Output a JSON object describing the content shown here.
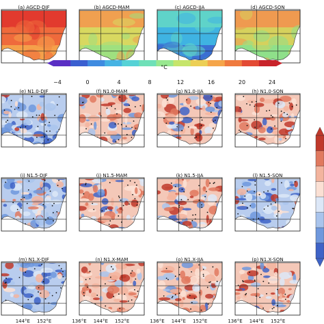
{
  "panels": [
    {
      "label": "(a) AGCD-DJF",
      "kind": "agcd",
      "season": "DJF"
    },
    {
      "label": "(b) AGCD-MAM",
      "kind": "agcd",
      "season": "MAM"
    },
    {
      "label": "(c) AGCD-JJA",
      "kind": "agcd",
      "season": "JJA"
    },
    {
      "label": "(d) AGCD-SON",
      "kind": "agcd",
      "season": "SON"
    },
    {
      "label": "(e) N1.0-DJF",
      "kind": "bias",
      "season": "DJF"
    },
    {
      "label": "(f) N1.0-MAM",
      "kind": "bias",
      "season": "MAM"
    },
    {
      "label": "(g) N1.0-JJA",
      "kind": "bias",
      "season": "JJA"
    },
    {
      "label": "(h) N1.0-SON",
      "kind": "bias",
      "season": "SON"
    },
    {
      "label": "(i) N1.5-DJF",
      "kind": "bias",
      "season": "DJF"
    },
    {
      "label": "(j) N1.5-MAM",
      "kind": "bias",
      "season": "MAM"
    },
    {
      "label": "(k) N1.5-JJA",
      "kind": "bias",
      "season": "JJA"
    },
    {
      "label": "(l) N1.5-SON",
      "kind": "bias",
      "season": "SON"
    },
    {
      "label": "(m) N1.X-DJF",
      "kind": "bias",
      "season": "DJF"
    },
    {
      "label": "(n) N1.X-MAM",
      "kind": "bias",
      "season": "MAM"
    },
    {
      "label": "(o) N1.X-JJA",
      "kind": "bias",
      "season": "JJA"
    },
    {
      "label": "(p) N1.X-SON",
      "kind": "bias",
      "season": "SON"
    }
  ],
  "colorbar_main": {
    "ticks": [
      "−4",
      "0",
      "4",
      "8",
      "12",
      "16",
      "20",
      "24"
    ],
    "unit": "°C",
    "colors": [
      "#5a2fc4",
      "#3a5fd0",
      "#3f8be0",
      "#46b3e3",
      "#56d2d6",
      "#6fe0b8",
      "#98e88f",
      "#c6e56b",
      "#eccf55",
      "#f5a54a",
      "#ef7a3e",
      "#e34a34",
      "#c8232a"
    ]
  },
  "colorbar_bias": {
    "colors": [
      "#c0392b",
      "#e0795f",
      "#f3b49e",
      "#fbe0d4",
      "#dce7f7",
      "#a9c4ec",
      "#6f98dd",
      "#3e63c7"
    ]
  },
  "longitude_ticks": [
    "136°E",
    "144°E",
    "152°E"
  ]
}
